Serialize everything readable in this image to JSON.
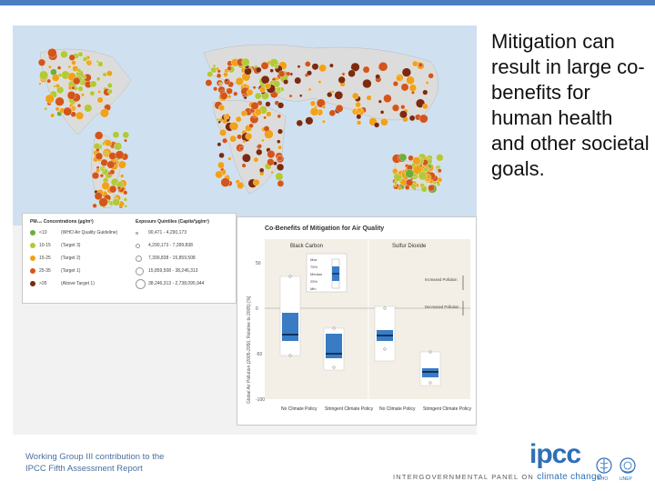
{
  "slide": {
    "title": "Mitigation can result in large co-benefits for human health and other societal goals.",
    "footer_line1": "Working Group III contribution to the",
    "footer_line2": "IPCC Fifth Assessment Report",
    "logo_text": "ipcc",
    "logo_tagline": "INTERGOVERNMENTAL PANEL ON",
    "logo_tagline_accent": "climate change",
    "emblem_who_label": "WHO",
    "emblem_unep_label": "UNEP",
    "colors": {
      "top_bar": "#4a7fc1",
      "ipcc_blue": "#2e6fb7"
    }
  },
  "map_legend": {
    "concentration_header": "PM₂.₅ Concentrations (µg/m³)",
    "exposure_header": "Exposure Quintiles (Capita*µg/m³)",
    "rows": [
      {
        "conc": "<10",
        "target": "(WHO Air Quality Guideline)",
        "quintile": "90,471 - 4,290,173",
        "color": "#6cae3c"
      },
      {
        "conc": "10-15",
        "target": "(Target 3)",
        "quintile": "4,290,173 - 7,399,838",
        "color": "#b3c93b"
      },
      {
        "conc": "15-25",
        "target": "(Target 2)",
        "quintile": "7,399,838 - 15,859,508",
        "color": "#f0a21a"
      },
      {
        "conc": "25-35",
        "target": "(Target 1)",
        "quintile": "15,859,508 - 38,246,313",
        "color": "#d2561b"
      },
      {
        "conc": ">35",
        "target": "(Above Target 1)",
        "quintile": "38,246,313 - 2,738,095,944",
        "color": "#7b2a10"
      }
    ]
  },
  "chart_data": {
    "type": "boxplot",
    "title": "Co-Benefits of Mitigation for Air Quality",
    "ylabel": "Global Air Pollution (2005-2050, Relative to 2005) [%]",
    "ylim": [
      -100,
      60
    ],
    "yticks": [
      50,
      0,
      -50,
      -100
    ],
    "groups": [
      {
        "name": "Black Carbon",
        "categories": [
          "No Climate Policy",
          "Stringent Climate Policy"
        ]
      },
      {
        "name": "Sulfur Dioxide",
        "categories": [
          "No Climate Policy",
          "Stringent Climate Policy"
        ]
      }
    ],
    "boxes": [
      {
        "group": "Black Carbon",
        "category": "No Climate Policy",
        "min": -52,
        "q25": -36,
        "median": -29,
        "q75": -5,
        "max": 35,
        "light_top": 35,
        "light_bottom": -52
      },
      {
        "group": "Black Carbon",
        "category": "Stringent Climate Policy",
        "min": -65,
        "q25": -55,
        "median": -50,
        "q75": -28,
        "max": -22,
        "light_top": -22,
        "light_bottom": -68
      },
      {
        "group": "Sulfur Dioxide",
        "category": "No Climate Policy",
        "min": -45,
        "q25": -36,
        "median": -30,
        "q75": -24,
        "max": 0,
        "light_top": 2,
        "light_bottom": -58
      },
      {
        "group": "Sulfur Dioxide",
        "category": "Stringent Climate Policy",
        "min": -82,
        "q25": -76,
        "median": -70,
        "q75": -66,
        "max": -48,
        "light_top": -48,
        "light_bottom": -85
      }
    ],
    "legend_box_labels": [
      "Max",
      "75%",
      "Median",
      "25%",
      "Min"
    ],
    "annotations": [
      "Increased Pollution",
      "Decreased Pollution"
    ]
  }
}
